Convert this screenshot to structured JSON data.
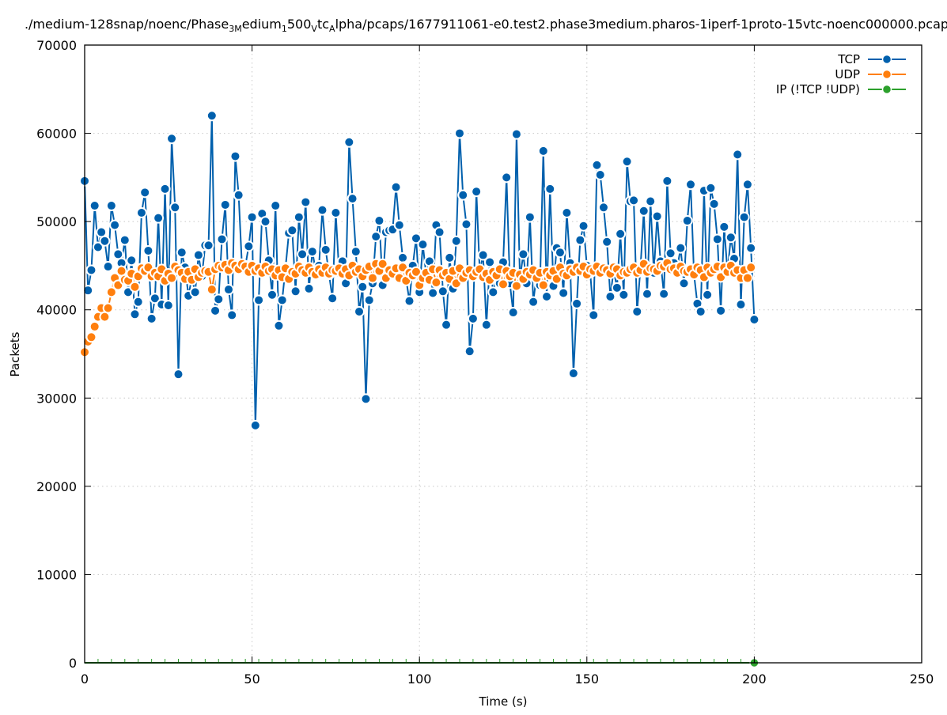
{
  "chart_data": {
    "type": "line",
    "title_parts": [
      {
        "text": "./medium-128snap/noenc/Phase"
      },
      {
        "sub": "3M"
      },
      {
        "text": "edium"
      },
      {
        "sub": "1"
      },
      {
        "text": "500"
      },
      {
        "sub": "V"
      },
      {
        "text": "tc"
      },
      {
        "sub": "A"
      },
      {
        "text": "lpha/pcaps/1677911061-e0.test2.phase3medium.pharos-1iperf-1proto-15vtc-noenc000000.pcap"
      }
    ],
    "xlabel": "Time (s)",
    "ylabel": "Packets",
    "xlim": [
      0,
      250
    ],
    "ylim": [
      0,
      70000
    ],
    "xticks": [
      0,
      50,
      100,
      150,
      200,
      250
    ],
    "yticks": [
      0,
      10000,
      20000,
      30000,
      40000,
      50000,
      60000,
      70000
    ],
    "grid": true,
    "legend_position": "top-right",
    "x_start": 0,
    "x_step": 1,
    "series": [
      {
        "name": "TCP",
        "color": "#0060ad",
        "values": [
          54600,
          42200,
          44500,
          51800,
          47100,
          48800,
          47800,
          44900,
          51800,
          49600,
          46300,
          45300,
          47900,
          42000,
          45600,
          39500,
          40900,
          51000,
          53300,
          46700,
          39000,
          41300,
          50400,
          40600,
          53700,
          40500,
          59400,
          51600,
          32700,
          46500,
          44800,
          41600,
          43600,
          42000,
          46200,
          43800,
          47300,
          47300,
          62000,
          39900,
          41200,
          48000,
          51900,
          42300,
          39400,
          57400,
          53000,
          44800,
          45000,
          47200,
          50500,
          26900,
          41100,
          50900,
          50000,
          45600,
          41700,
          51800,
          38200,
          41100,
          44800,
          48700,
          49000,
          42100,
          50500,
          46300,
          52200,
          42400,
          46600,
          44500,
          45000,
          51300,
          46800,
          44000,
          41300,
          51000,
          44200,
          45500,
          43000,
          59000,
          52600,
          46600,
          39800,
          42600,
          29900,
          41100,
          43000,
          48300,
          50100,
          42800,
          48800,
          49000,
          49100,
          53900,
          49600,
          45900,
          43500,
          41000,
          45000,
          48100,
          42000,
          47400,
          44000,
          45500,
          41900,
          49600,
          48800,
          42100,
          38300,
          45900,
          42400,
          47800,
          60000,
          53000,
          49700,
          35300,
          39000,
          53400,
          44400,
          46200,
          38300,
          45400,
          42000,
          43700,
          43000,
          45400,
          55000,
          43000,
          39700,
          59900,
          43500,
          46300,
          43000,
          50500,
          40900,
          44000,
          42800,
          58000,
          41500,
          53700,
          42700,
          47000,
          46500,
          41900,
          51000,
          45300,
          32800,
          40700,
          47900,
          49500,
          45000,
          44200,
          39400,
          56400,
          55300,
          51600,
          47700,
          41500,
          44500,
          42500,
          48600,
          41700,
          56800,
          52300,
          52400,
          39800,
          44700,
          51200,
          41800,
          52300,
          44200,
          50600,
          45500,
          41800,
          54600,
          46400,
          45300,
          44800,
          47000,
          43000,
          50100,
          54200,
          44000,
          40700,
          39800,
          53500,
          41700,
          53800,
          52000,
          48000,
          39900,
          49400,
          44300,
          48200,
          45800,
          57600,
          40600,
          50500,
          54200,
          47000,
          38900
        ]
      },
      {
        "name": "UDP",
        "color": "#ff7f0e",
        "values": [
          35200,
          36400,
          36900,
          38100,
          39200,
          40200,
          39200,
          40200,
          42000,
          43600,
          42800,
          44400,
          43400,
          43300,
          44100,
          42600,
          43800,
          44700,
          44400,
          44800,
          43800,
          44200,
          43800,
          44600,
          43300,
          44100,
          43600,
          44900,
          44500,
          44200,
          43500,
          44300,
          43400,
          44600,
          43700,
          44200,
          44400,
          44300,
          42300,
          44600,
          45000,
          44800,
          45100,
          44500,
          45300,
          45000,
          44600,
          45200,
          44900,
          44300,
          45000,
          44400,
          44700,
          44200,
          44900,
          44400,
          44600,
          43900,
          44500,
          43700,
          44700,
          43500,
          44300,
          44100,
          44900,
          44500,
          44200,
          44800,
          44300,
          44000,
          44600,
          44200,
          44800,
          44100,
          44500,
          44400,
          44700,
          44100,
          44600,
          43900,
          45000,
          44300,
          44600,
          43800,
          44500,
          44900,
          43600,
          45200,
          44400,
          45200,
          43600,
          44500,
          44100,
          44700,
          43600,
          44800,
          43300,
          44200,
          43900,
          44300,
          42800,
          43600,
          44200,
          43400,
          44600,
          43100,
          44500,
          43900,
          44200,
          43500,
          44400,
          43000,
          44700,
          43600,
          44200,
          44500,
          43800,
          44300,
          44600,
          43700,
          44100,
          43400,
          44300,
          43900,
          44600,
          42900,
          44400,
          43800,
          44200,
          42700,
          44000,
          43500,
          44300,
          44000,
          44500,
          43600,
          44200,
          42800,
          44300,
          43900,
          44400,
          43500,
          44800,
          44100,
          43900,
          44600,
          44300,
          44800,
          44400,
          44900,
          44000,
          44600,
          44400,
          44900,
          44200,
          44700,
          44500,
          44100,
          44800,
          44600,
          43900,
          44300,
          44200,
          44600,
          44800,
          44200,
          44500,
          45200,
          44300,
          44700,
          44600,
          44400,
          45000,
          44900,
          45300,
          44600,
          44700,
          44200,
          44900,
          44400,
          44300,
          44600,
          44000,
          44800,
          44500,
          43700,
          44800,
          44200,
          44600,
          44900,
          43700,
          44800,
          44300,
          45000,
          44200,
          44500,
          43600,
          44500,
          43600,
          44800
        ]
      },
      {
        "name": "IP (!TCP  !UDP)",
        "color": "#2ca02c",
        "values": [
          0,
          0,
          0,
          0,
          0,
          0,
          0,
          0,
          0,
          0,
          0,
          0,
          0,
          0,
          0,
          0,
          0,
          0,
          0,
          0,
          0,
          0,
          0,
          0,
          0,
          0,
          0,
          0,
          0,
          0,
          0,
          0,
          0,
          0,
          0,
          0,
          0,
          0,
          0,
          0,
          0,
          0,
          0,
          0,
          0,
          0,
          0,
          0,
          0,
          0,
          0,
          0,
          0,
          0,
          0,
          0,
          0,
          0,
          0,
          0,
          0,
          0,
          0,
          0,
          0,
          0,
          0,
          0,
          0,
          0,
          0,
          0,
          0,
          0,
          0,
          0,
          0,
          0,
          0,
          0,
          0,
          0,
          0,
          0,
          0,
          0,
          0,
          0,
          0,
          0,
          0,
          0,
          0,
          0,
          0,
          0,
          0,
          0,
          0,
          0,
          0,
          0,
          0,
          0,
          0,
          0,
          0,
          0,
          0,
          0,
          0,
          0,
          0,
          0,
          0,
          0,
          0,
          0,
          0,
          0,
          0,
          0,
          0,
          0,
          0,
          0,
          0,
          0,
          0,
          0,
          0,
          0,
          0,
          0,
          0,
          0,
          0,
          0,
          0,
          0,
          0,
          0,
          0,
          0,
          0,
          0,
          0,
          0,
          0,
          0,
          0,
          0,
          0,
          0,
          0,
          0,
          0,
          0,
          0,
          0,
          0,
          0,
          0,
          0,
          0,
          0,
          0,
          0,
          0,
          0,
          0,
          0,
          0,
          0,
          0,
          0,
          0,
          0,
          0,
          0,
          0,
          0,
          0,
          0,
          0,
          0,
          0,
          0,
          0,
          0,
          0,
          0,
          0,
          0,
          0,
          0,
          0,
          0,
          0,
          0,
          0
        ]
      }
    ]
  }
}
